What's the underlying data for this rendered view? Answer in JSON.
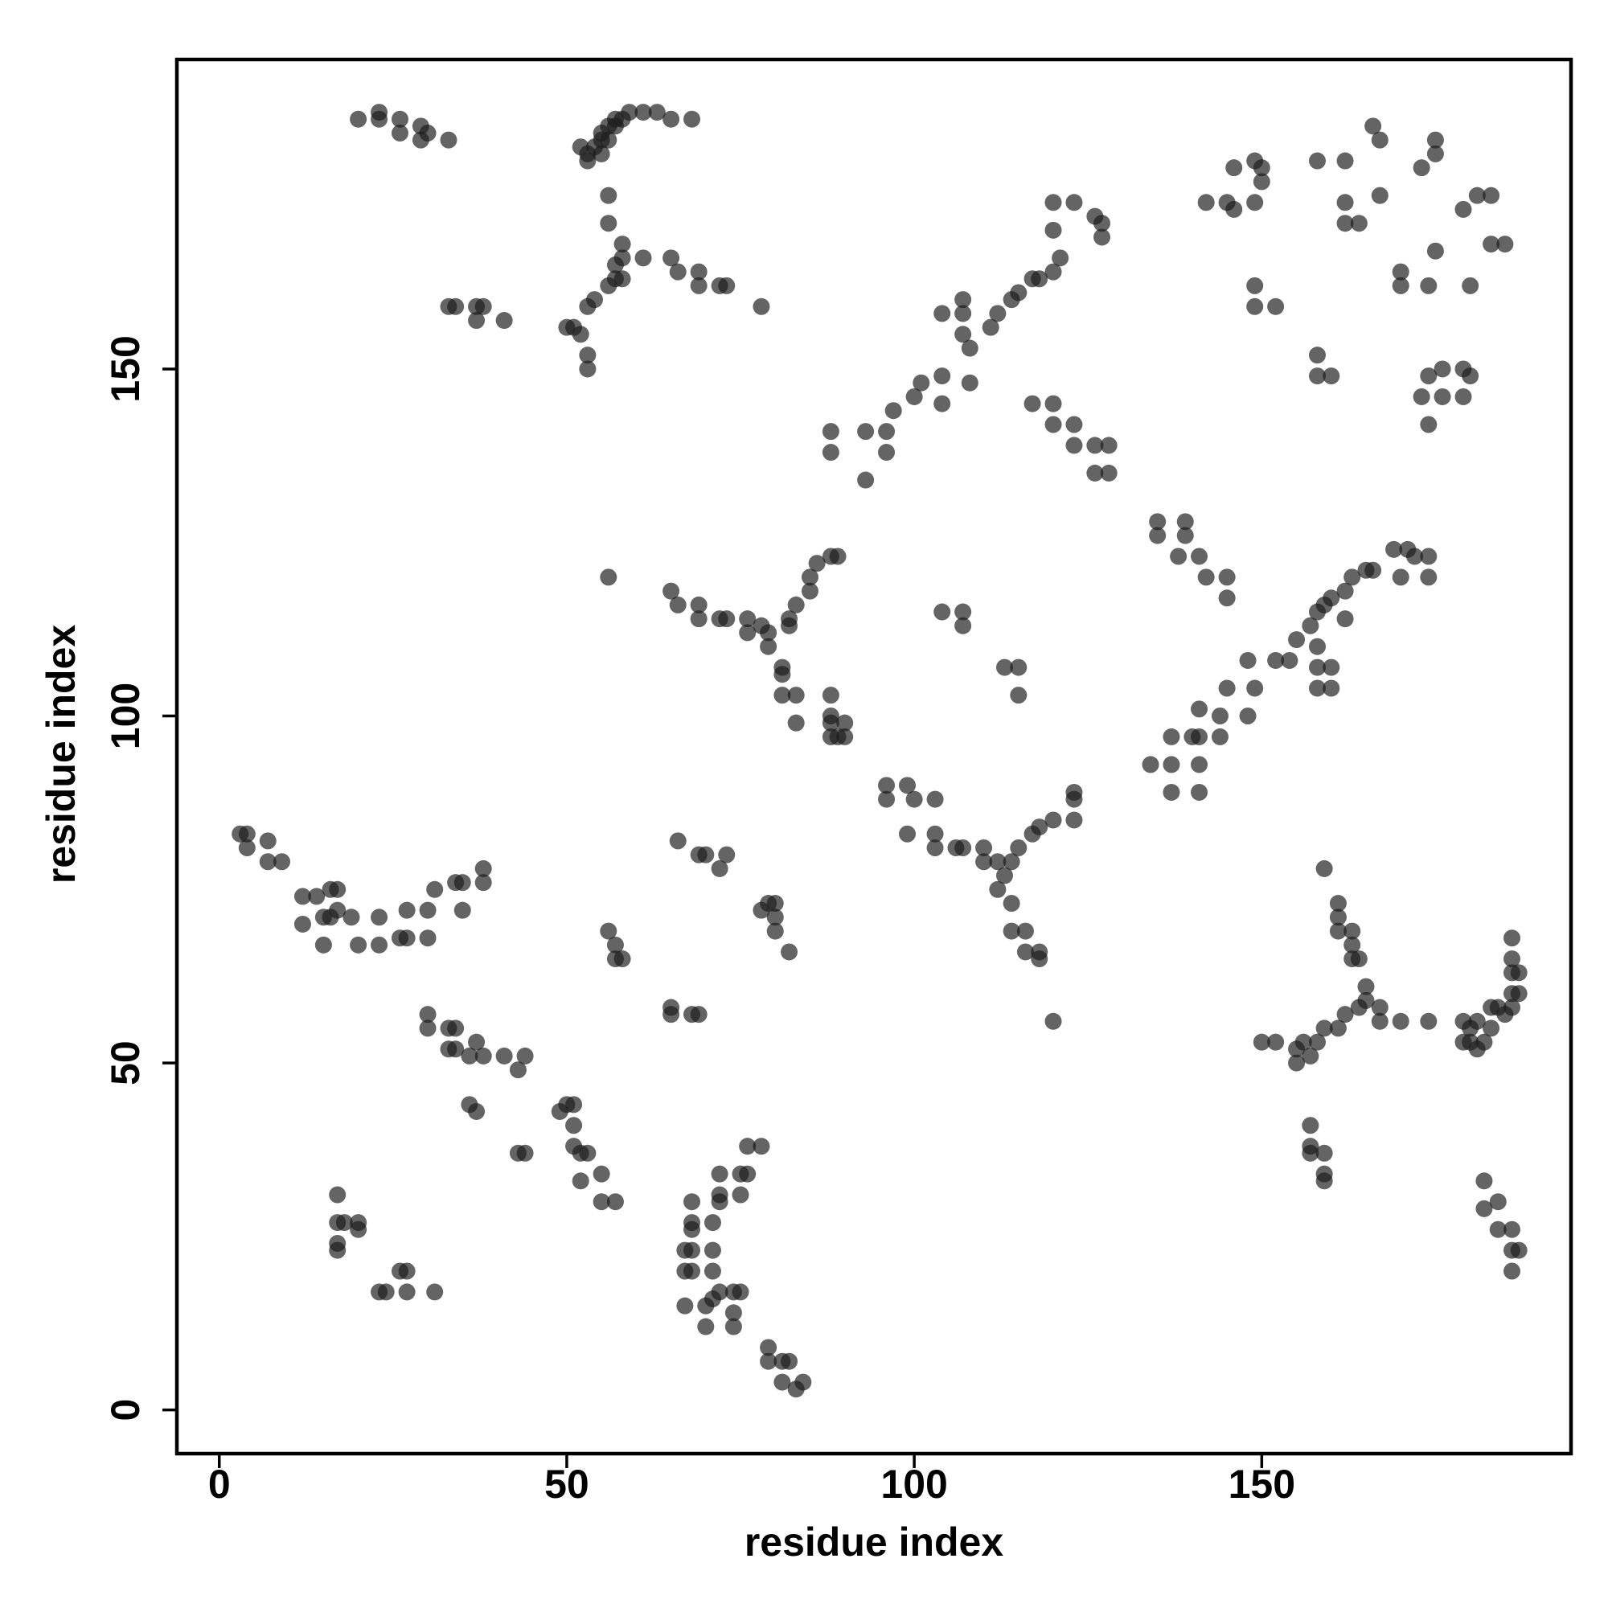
{
  "chart_data": {
    "type": "scatter",
    "x_label": "residue index",
    "y_label": "residue index",
    "xlim": [
      -6.1,
      194.5
    ],
    "ylim": [
      -6.3,
      194.6
    ],
    "xticks": [
      0,
      50,
      100,
      150
    ],
    "yticks": [
      0,
      50,
      100,
      150
    ],
    "color": "#1a1a1a",
    "alpha": 0.68,
    "x": [
      20,
      23,
      23,
      26,
      26,
      29,
      29,
      30,
      33,
      52,
      53,
      54,
      55,
      55,
      56,
      57,
      57,
      58,
      59,
      61,
      63,
      65,
      68,
      53,
      55,
      56,
      56,
      56,
      58,
      57,
      58,
      61,
      56,
      54,
      53,
      51,
      50,
      52,
      53,
      53,
      58,
      57,
      65,
      66,
      69,
      69,
      72,
      73,
      78,
      33,
      34,
      37,
      38,
      37,
      41,
      88,
      88,
      93,
      93,
      96,
      97,
      96,
      100,
      101,
      104,
      104,
      104,
      107,
      107,
      107,
      108,
      111,
      112,
      114,
      115,
      117,
      118,
      120,
      121,
      120,
      120,
      123,
      126,
      127,
      127,
      108,
      117,
      120,
      120,
      123,
      123,
      126,
      128,
      126,
      128,
      142,
      145,
      146,
      146,
      149,
      150,
      150,
      149,
      149,
      149,
      152,
      158,
      162,
      162,
      162,
      164,
      166,
      167,
      167,
      170,
      170,
      173,
      175,
      175,
      175,
      174,
      179,
      181,
      183,
      183,
      185,
      180,
      158,
      158,
      160,
      173,
      174,
      176,
      179,
      180,
      179,
      174,
      176,
      56,
      65,
      66,
      69,
      69,
      72,
      73,
      76,
      76,
      78,
      79,
      79,
      81,
      81,
      81,
      83,
      83,
      82,
      83,
      85,
      85,
      86,
      88,
      89,
      82,
      88,
      88,
      89,
      90,
      90,
      88,
      88,
      96,
      96,
      99,
      100,
      103,
      99,
      103,
      103,
      106,
      107,
      110,
      110,
      112,
      113,
      114,
      115,
      117,
      118,
      120,
      123,
      123,
      123,
      114,
      114,
      116,
      116,
      118,
      118,
      112,
      120,
      104,
      107,
      107,
      113,
      115,
      115,
      134,
      137,
      137,
      137,
      140,
      141,
      141,
      141,
      141,
      144,
      145,
      144,
      148,
      148,
      149,
      152,
      154,
      155,
      157,
      158,
      159,
      160,
      162,
      163,
      165,
      166,
      158,
      158,
      160,
      160,
      158,
      162,
      169,
      171,
      172,
      170,
      174,
      174,
      135,
      135,
      139,
      139,
      138,
      141,
      142,
      145,
      145,
      3,
      4,
      4,
      7,
      7,
      9,
      12,
      12,
      14,
      15,
      16,
      17,
      17,
      15,
      16,
      19,
      20,
      23,
      23,
      26,
      27,
      27,
      30,
      30,
      31,
      34,
      35,
      35,
      38,
      38,
      30,
      30,
      33,
      34,
      33,
      34,
      37,
      36,
      38,
      41,
      43,
      44,
      36,
      37,
      43,
      44,
      49,
      50,
      51,
      51,
      51,
      52,
      52,
      53,
      55,
      55,
      57,
      56,
      57,
      57,
      58,
      65,
      65,
      68,
      69,
      66,
      69,
      70,
      73,
      72,
      78,
      79,
      80,
      80,
      80,
      82,
      17,
      17,
      18,
      20,
      20,
      17,
      17,
      23,
      24,
      26,
      27,
      27,
      31,
      68,
      68,
      68,
      67,
      68,
      67,
      68,
      67,
      70,
      71,
      71,
      71,
      71,
      72,
      72,
      72,
      74,
      74,
      74,
      75,
      75,
      75,
      76,
      76,
      78,
      70,
      72,
      79,
      79,
      81,
      82,
      81,
      83,
      84,
      159,
      161,
      161,
      161,
      163,
      163,
      163,
      164,
      165,
      165,
      167,
      167,
      164,
      162,
      161,
      159,
      158,
      156,
      155,
      155,
      157,
      150,
      152,
      170,
      174,
      179,
      180,
      181,
      183,
      184,
      185,
      186,
      186,
      187,
      186,
      187,
      186,
      186,
      179,
      181,
      182,
      180,
      183,
      157,
      157,
      159,
      159,
      159,
      157,
      182,
      182,
      184,
      184,
      186,
      186,
      187,
      186
    ],
    "y": [
      186,
      187,
      186,
      186,
      184,
      185,
      183,
      184,
      183,
      182,
      181,
      182,
      183,
      184,
      185,
      186,
      185,
      186,
      187,
      187,
      187,
      186,
      186,
      180,
      181,
      183,
      175,
      171,
      168,
      165,
      166,
      166,
      162,
      160,
      159,
      156,
      156,
      155,
      152,
      150,
      163,
      163,
      166,
      164,
      164,
      162,
      162,
      162,
      159,
      159,
      159,
      159,
      159,
      157,
      157,
      141,
      138,
      141,
      134,
      141,
      144,
      138,
      146,
      148,
      149,
      145,
      158,
      160,
      158,
      155,
      153,
      156,
      158,
      160,
      161,
      163,
      163,
      164,
      166,
      170,
      174,
      174,
      172,
      171,
      169,
      148,
      145,
      145,
      142,
      142,
      139,
      139,
      139,
      135,
      135,
      174,
      174,
      179,
      173,
      180,
      179,
      177,
      174,
      162,
      159,
      159,
      180,
      180,
      174,
      171,
      171,
      185,
      183,
      175,
      164,
      162,
      179,
      183,
      181,
      167,
      162,
      173,
      175,
      175,
      168,
      168,
      162,
      152,
      149,
      149,
      146,
      149,
      150,
      150,
      149,
      146,
      142,
      146,
      120,
      118,
      116,
      116,
      114,
      114,
      114,
      114,
      112,
      113,
      112,
      110,
      107,
      106,
      103,
      103,
      99,
      114,
      116,
      118,
      120,
      122,
      123,
      123,
      113,
      103,
      99,
      97,
      97,
      99,
      97,
      100,
      90,
      88,
      90,
      88,
      88,
      83,
      83,
      81,
      81,
      81,
      81,
      79,
      79,
      77,
      79,
      81,
      83,
      84,
      85,
      85,
      88,
      89,
      73,
      69,
      69,
      66,
      66,
      65,
      75,
      56,
      115,
      115,
      113,
      107,
      107,
      103,
      93,
      97,
      93,
      89,
      97,
      101,
      97,
      93,
      89,
      100,
      104,
      97,
      100,
      108,
      104,
      108,
      108,
      111,
      113,
      115,
      116,
      117,
      118,
      120,
      121,
      121,
      107,
      104,
      104,
      107,
      110,
      114,
      124,
      124,
      123,
      120,
      120,
      123,
      128,
      126,
      128,
      126,
      123,
      123,
      120,
      120,
      117,
      83,
      83,
      81,
      82,
      79,
      79,
      74,
      70,
      74,
      71,
      75,
      75,
      72,
      67,
      71,
      71,
      67,
      71,
      67,
      68,
      72,
      68,
      68,
      72,
      75,
      76,
      72,
      76,
      76,
      78,
      57,
      55,
      55,
      55,
      52,
      52,
      53,
      51,
      51,
      51,
      49,
      51,
      44,
      43,
      37,
      37,
      43,
      44,
      44,
      41,
      38,
      37,
      33,
      37,
      34,
      30,
      30,
      69,
      67,
      65,
      65,
      58,
      57,
      57,
      57,
      82,
      80,
      80,
      80,
      78,
      72,
      73,
      73,
      71,
      69,
      66,
      31,
      27,
      27,
      27,
      26,
      24,
      23,
      17,
      17,
      20,
      20,
      17,
      17,
      30,
      27,
      26,
      23,
      23,
      20,
      20,
      15,
      15,
      16,
      20,
      23,
      27,
      31,
      34,
      30,
      17,
      14,
      12,
      17,
      34,
      31,
      34,
      38,
      38,
      12,
      17,
      9,
      7,
      7,
      7,
      4,
      3,
      4,
      78,
      73,
      71,
      69,
      69,
      67,
      65,
      65,
      61,
      59,
      58,
      56,
      58,
      57,
      55,
      55,
      53,
      53,
      52,
      50,
      51,
      53,
      53,
      56,
      56,
      56,
      55,
      56,
      58,
      58,
      57,
      58,
      60,
      60,
      63,
      63,
      65,
      68,
      53,
      52,
      53,
      53,
      55,
      41,
      38,
      37,
      34,
      33,
      37,
      33,
      29,
      30,
      26,
      26,
      23,
      23,
      20
    ]
  }
}
